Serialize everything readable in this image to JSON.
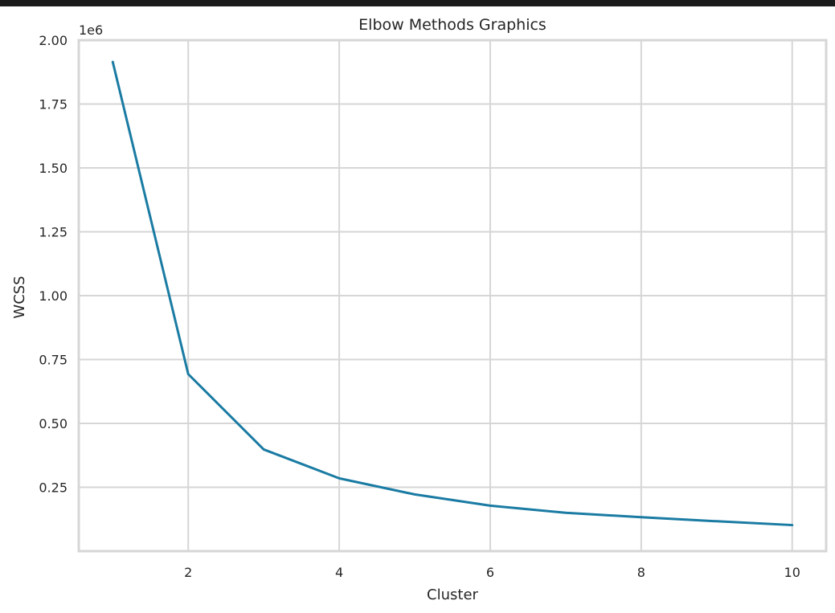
{
  "chart_data": {
    "type": "line",
    "title": "Elbow Methods Graphics",
    "xlabel": "Cluster",
    "ylabel": "WCSS",
    "y_offset_label": "1e6",
    "x": [
      1,
      2,
      3,
      4,
      5,
      6,
      7,
      8,
      9,
      10
    ],
    "series": [
      {
        "values": [
          1915000,
          693000,
          398000,
          285000,
          222000,
          178000,
          150000,
          133000,
          117000,
          102000
        ]
      }
    ],
    "xlim": [
      0.55,
      10.45
    ],
    "ylim": [
      0,
      2000000
    ],
    "x_ticks": [
      2,
      4,
      6,
      8,
      10
    ],
    "x_tick_labels": [
      "2",
      "4",
      "6",
      "8",
      "10"
    ],
    "y_ticks": [
      250000,
      500000,
      750000,
      1000000,
      1250000,
      1500000,
      1750000,
      2000000
    ],
    "y_tick_labels": [
      "0.25",
      "0.50",
      "0.75",
      "1.00",
      "1.25",
      "1.50",
      "1.75",
      "2.00"
    ],
    "grid": true,
    "colors": {
      "line": "#1a7ba3",
      "grid": "#d6d6d6",
      "frame": "#d6d6d6"
    }
  }
}
